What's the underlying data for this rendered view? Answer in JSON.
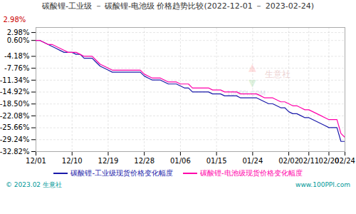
{
  "chart_data": {
    "type": "line",
    "title": "碳酸锂-工业级 － 碳酸锂-电池级  价格趋势比较(2022-12-01 － 2023-02-24)",
    "x": [
      0,
      1,
      2,
      3,
      4,
      5,
      6,
      7,
      8,
      9,
      10,
      11,
      12,
      13,
      14,
      15,
      16,
      17,
      18,
      19,
      20,
      21,
      22,
      23,
      24,
      25,
      26,
      27,
      28,
      29,
      30,
      31,
      32,
      33,
      34,
      35,
      36,
      37,
      38,
      39,
      40,
      41,
      42,
      43,
      44,
      45,
      46,
      47,
      48,
      49,
      50,
      51,
      52,
      53,
      54,
      55,
      56,
      57,
      58,
      59,
      60,
      61,
      62,
      63,
      64,
      65,
      66,
      67,
      68,
      69,
      70,
      71,
      72,
      73,
      74,
      75,
      76,
      77
    ],
    "xlim": [
      0,
      77
    ],
    "xticks": [
      {
        "value": 0,
        "label": "12/01"
      },
      {
        "value": 9,
        "label": "12/10"
      },
      {
        "value": 18,
        "label": "12/19"
      },
      {
        "value": 27,
        "label": "12/28"
      },
      {
        "value": 36,
        "label": "01/06"
      },
      {
        "value": 45,
        "label": "01/15"
      },
      {
        "value": 54,
        "label": "01/24"
      },
      {
        "value": 63,
        "label": "02/02"
      },
      {
        "value": 68,
        "label": "02/11"
      },
      {
        "value": 73,
        "label": "02/20"
      },
      {
        "value": 77,
        "label": "02/24"
      }
    ],
    "ylim": [
      -32.82,
      4.5
    ],
    "yticks": [
      {
        "value": 2.98,
        "label": "2.98%"
      },
      {
        "value": 0.6,
        "label": "0.60%"
      },
      {
        "value": -4.18,
        "label": "-4.18%"
      },
      {
        "value": -7.76,
        "label": "-7.76%"
      },
      {
        "value": -11.34,
        "label": "-11.34%"
      },
      {
        "value": -14.92,
        "label": "-14.92%"
      },
      {
        "value": -18.5,
        "label": "-18.50%"
      },
      {
        "value": -22.08,
        "label": "-22.08%"
      },
      {
        "value": -25.66,
        "label": "-25.66%"
      },
      {
        "value": -29.24,
        "label": "-29.24%"
      },
      {
        "value": -32.82,
        "label": "-32.82%"
      }
    ],
    "grid": true,
    "legend": "bottom",
    "series": [
      {
        "name": "碳酸锂-工业级现货价格变化幅度",
        "color": "#1a1aaa",
        "values": [
          0.6,
          0.6,
          0.0,
          -0.6,
          -1.19,
          -1.79,
          -2.39,
          -2.98,
          -2.98,
          -2.98,
          -3.57,
          -3.57,
          -4.76,
          -4.76,
          -4.76,
          -5.95,
          -7.14,
          -7.74,
          -8.33,
          -8.93,
          -8.93,
          -8.93,
          -8.93,
          -8.93,
          -8.93,
          -8.93,
          -8.93,
          -10.12,
          -10.71,
          -11.31,
          -11.31,
          -11.31,
          -11.9,
          -12.5,
          -12.5,
          -12.5,
          -13.09,
          -13.69,
          -13.69,
          -14.88,
          -14.88,
          -14.88,
          -14.88,
          -14.88,
          -15.48,
          -15.48,
          -15.48,
          -16.07,
          -16.07,
          -16.07,
          -16.07,
          -16.67,
          -16.67,
          -16.67,
          -16.67,
          -16.67,
          -17.26,
          -17.86,
          -18.45,
          -18.45,
          -19.05,
          -19.64,
          -19.64,
          -20.83,
          -21.43,
          -21.43,
          -22.02,
          -22.62,
          -22.62,
          -23.21,
          -23.81,
          -24.4,
          -25.0,
          -25.6,
          -25.6,
          -25.6,
          -29.76,
          -29.76
        ]
      },
      {
        "name": "碳酸锂-电池级现货价格变化幅度",
        "color": "#ff00aa",
        "values": [
          0.6,
          0.6,
          0.0,
          -0.6,
          -0.6,
          -1.19,
          -1.79,
          -2.38,
          -2.98,
          -2.98,
          -2.98,
          -3.57,
          -4.17,
          -4.17,
          -4.17,
          -5.36,
          -6.55,
          -7.14,
          -7.74,
          -8.33,
          -8.33,
          -8.33,
          -8.33,
          -8.33,
          -8.33,
          -8.33,
          -8.33,
          -9.52,
          -10.12,
          -10.71,
          -10.71,
          -10.71,
          -11.31,
          -11.9,
          -11.9,
          -11.9,
          -12.5,
          -12.5,
          -12.5,
          -13.69,
          -13.69,
          -13.69,
          -13.69,
          -13.69,
          -14.29,
          -14.29,
          -14.29,
          -14.88,
          -14.88,
          -14.88,
          -14.88,
          -15.48,
          -15.48,
          -15.48,
          -15.48,
          -15.48,
          -16.07,
          -16.67,
          -16.67,
          -16.67,
          -17.26,
          -17.86,
          -17.86,
          -18.45,
          -19.05,
          -19.05,
          -19.64,
          -20.24,
          -20.24,
          -20.83,
          -21.43,
          -22.02,
          -22.62,
          -23.21,
          -23.21,
          -23.21,
          -27.38,
          -28.57
        ]
      }
    ],
    "annotations": [
      {
        "text": "2.98%",
        "color": "#cc0000"
      }
    ],
    "watermark": [
      {
        "text": "▲",
        "color": "#ffaaaa"
      },
      {
        "text": "▼",
        "color": "#aaddaa"
      },
      {
        "text": "生意社",
        "color": "#cc8888"
      },
      {
        "text": "100PPI.COM",
        "color": "#aaaacc"
      }
    ],
    "caption": [
      {
        "text": "© 2023.02 生意社",
        "color": "#009999"
      },
      {
        "text": "www.100PPI.com",
        "color": "#009999"
      }
    ]
  }
}
